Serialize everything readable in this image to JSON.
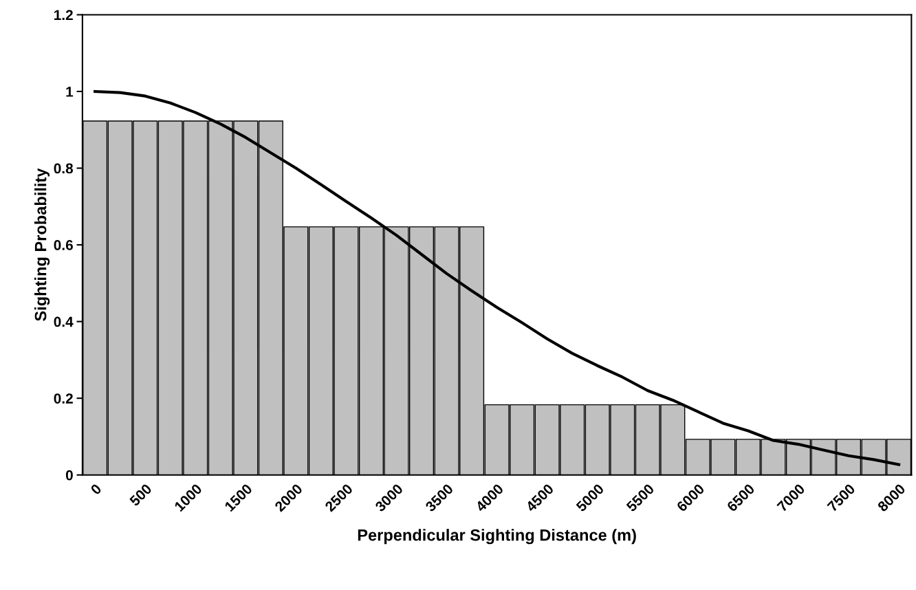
{
  "chart_data": {
    "type": "bar",
    "xlabel": "Perpendicular Sighting Distance (m)",
    "ylabel": "Sighting Probability",
    "categories": [
      "0",
      null,
      "500",
      null,
      "1000",
      null,
      "1500",
      null,
      "2000",
      null,
      "2500",
      null,
      "3000",
      null,
      "3500",
      null,
      "4000",
      null,
      "4500",
      null,
      "5000",
      null,
      "5500",
      null,
      "6000",
      null,
      "6500",
      null,
      "7000",
      null,
      "7500",
      null,
      "8000"
    ],
    "series": [
      {
        "color": "#c0c0c0",
        "values": [
          0.923,
          0.923,
          0.923,
          0.923,
          0.923,
          0.923,
          0.923,
          0.923,
          0.647,
          0.647,
          0.647,
          0.647,
          0.647,
          0.647,
          0.647,
          0.647,
          0.183,
          0.183,
          0.183,
          0.183,
          0.183,
          0.183,
          0.183,
          0.183,
          0.093,
          0.093,
          0.093,
          0.093,
          0.093,
          0.093,
          0.093,
          0.093,
          0.093
        ]
      },
      {
        "type": "line",
        "color": "#000000",
        "values": [
          1.0,
          0.997,
          0.988,
          0.97,
          0.945,
          0.915,
          0.88,
          0.84,
          0.8,
          0.757,
          0.713,
          0.67,
          0.625,
          0.575,
          0.525,
          0.48,
          0.437,
          0.397,
          0.355,
          0.317,
          0.285,
          0.255,
          0.22,
          0.195,
          0.165,
          0.135,
          0.115,
          0.09,
          0.08,
          0.065,
          0.05,
          0.04,
          0.027
        ]
      }
    ],
    "ylim": [
      0,
      1.2
    ],
    "yticks": [
      0,
      0.2,
      0.4,
      0.6,
      0.8,
      1,
      1.2
    ],
    "grid": false,
    "legend": false,
    "marker": "none",
    "line_style": "solid"
  }
}
